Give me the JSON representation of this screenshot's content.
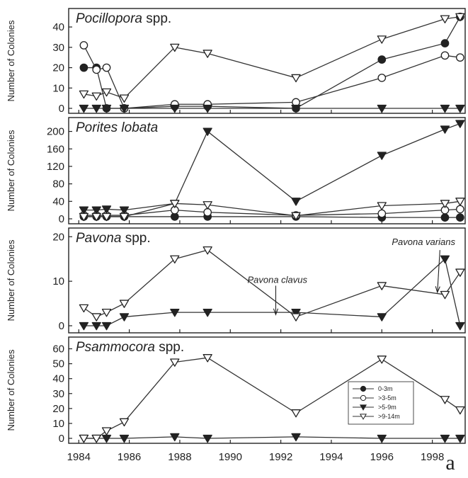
{
  "figure_label": "a",
  "x_axis": {
    "ticks": [
      1984,
      1986,
      1988,
      1990,
      1992,
      1994,
      1996,
      1998
    ],
    "range": [
      1983.6,
      1999.3
    ]
  },
  "legend": {
    "placement": "inside bottom panel, right-center",
    "entries": [
      {
        "label": "0-3m",
        "marker": "filled-circle"
      },
      {
        "label": ">3-5m",
        "marker": "open-circle"
      },
      {
        "label": ">5-9m",
        "marker": "filled-triangle-down"
      },
      {
        "label": ">9-14m",
        "marker": "open-triangle-down"
      }
    ]
  },
  "chart_data": [
    {
      "type": "line",
      "title_italic": "Pocillopora",
      "title_rest": " spp.",
      "ylabel": "Number of Colonies",
      "ylim": [
        0,
        47
      ],
      "yticks": [
        0,
        10,
        20,
        30,
        40
      ],
      "series": [
        {
          "name": "0-3m",
          "x": [
            1984.2,
            1984.7,
            1985.1,
            1985.8,
            1987.8,
            1989.1,
            1992.6,
            1996.0,
            1998.5,
            1999.1
          ],
          "y": [
            20,
            20,
            0,
            0,
            1,
            1,
            0,
            24,
            32,
            45
          ]
        },
        {
          "name": ">3-5m",
          "x": [
            1984.2,
            1984.7,
            1985.1,
            1985.8,
            1987.8,
            1989.1,
            1992.6,
            1996.0,
            1998.5,
            1999.1
          ],
          "y": [
            31,
            19,
            20,
            0,
            2,
            2,
            3,
            15,
            26,
            25
          ]
        },
        {
          "name": ">5-9m",
          "x": [
            1984.2,
            1984.7,
            1985.1,
            1985.8,
            1987.8,
            1989.1,
            1992.6,
            1996.0,
            1998.5,
            1999.1
          ],
          "y": [
            0,
            0,
            0,
            0,
            0,
            0,
            0,
            0,
            0,
            0
          ]
        },
        {
          "name": ">9-14m",
          "x": [
            1984.2,
            1984.7,
            1985.1,
            1985.8,
            1987.8,
            1989.1,
            1992.6,
            1996.0,
            1998.5,
            1999.1
          ],
          "y": [
            7,
            6,
            8,
            5,
            30,
            27,
            15,
            34,
            44,
            45
          ]
        }
      ]
    },
    {
      "type": "line",
      "title_italic": "Porites lobata",
      "title_rest": "",
      "ylabel": "Number of Colonies",
      "ylim": [
        0,
        222
      ],
      "yticks": [
        0,
        40,
        80,
        120,
        160,
        200
      ],
      "series": [
        {
          "name": "0-3m",
          "x": [
            1984.2,
            1984.7,
            1985.1,
            1985.8,
            1987.8,
            1989.1,
            1992.6,
            1996.0,
            1998.5,
            1999.1
          ],
          "y": [
            5,
            5,
            5,
            5,
            5,
            5,
            5,
            3,
            3,
            3
          ]
        },
        {
          "name": ">3-5m",
          "x": [
            1984.2,
            1984.7,
            1985.1,
            1985.8,
            1987.8,
            1989.1,
            1992.6,
            1996.0,
            1998.5,
            1999.1
          ],
          "y": [
            8,
            8,
            8,
            8,
            20,
            15,
            8,
            12,
            20,
            22
          ]
        },
        {
          "name": ">5-9m",
          "x": [
            1984.2,
            1984.7,
            1985.1,
            1985.8,
            1987.8,
            1989.1,
            1992.6,
            1996.0,
            1998.5,
            1999.1
          ],
          "y": [
            20,
            20,
            22,
            20,
            35,
            200,
            40,
            145,
            205,
            218
          ]
        },
        {
          "name": ">9-14m",
          "x": [
            1984.2,
            1984.7,
            1985.1,
            1985.8,
            1987.8,
            1989.1,
            1992.6,
            1996.0,
            1998.5,
            1999.1
          ],
          "y": [
            5,
            5,
            5,
            5,
            35,
            32,
            7,
            30,
            35,
            40
          ]
        }
      ]
    },
    {
      "type": "line",
      "title_italic": "Pavona",
      "title_rest": " spp.",
      "ylabel": "Number of Colonies",
      "ylim": [
        0,
        21
      ],
      "yticks": [
        0,
        10,
        20
      ],
      "annotations": [
        {
          "text": "Pavona clavus",
          "x": 1991.8,
          "y": 2.5
        },
        {
          "text": "Pavona varians",
          "x": 1998.2,
          "y": 7.5
        }
      ],
      "series": [
        {
          "name": ">5-9m",
          "x": [
            1984.2,
            1984.7,
            1985.1,
            1985.8,
            1987.8,
            1989.1,
            1992.6,
            1996.0,
            1998.5,
            1999.1
          ],
          "y": [
            0,
            0,
            0,
            2,
            3,
            3,
            3,
            2,
            15,
            0
          ]
        },
        {
          "name": ">9-14m",
          "x": [
            1984.2,
            1984.7,
            1985.1,
            1985.8,
            1987.8,
            1989.1,
            1992.6,
            1996.0,
            1998.5,
            1999.1
          ],
          "y": [
            4,
            2,
            3,
            5,
            15,
            17,
            2,
            9,
            7,
            12
          ]
        }
      ]
    },
    {
      "type": "line",
      "title_italic": "Psammocora",
      "title_rest": " spp.",
      "ylabel": "Number of Colonies",
      "ylim": [
        0,
        65
      ],
      "yticks": [
        0,
        10,
        20,
        30,
        40,
        50,
        60
      ],
      "series": [
        {
          "name": ">5-9m",
          "x": [
            1984.2,
            1984.7,
            1985.1,
            1985.8,
            1987.8,
            1989.1,
            1992.6,
            1996.0,
            1998.5,
            1999.1
          ],
          "y": [
            0,
            0,
            0,
            0,
            1,
            0,
            1,
            0,
            0,
            0
          ]
        },
        {
          "name": ">9-14m",
          "x": [
            1984.2,
            1984.7,
            1985.1,
            1985.8,
            1987.8,
            1989.1,
            1992.6,
            1996.0,
            1998.5,
            1999.1
          ],
          "y": [
            0,
            0,
            5,
            11,
            51,
            54,
            17,
            53,
            26,
            19
          ]
        }
      ]
    }
  ]
}
